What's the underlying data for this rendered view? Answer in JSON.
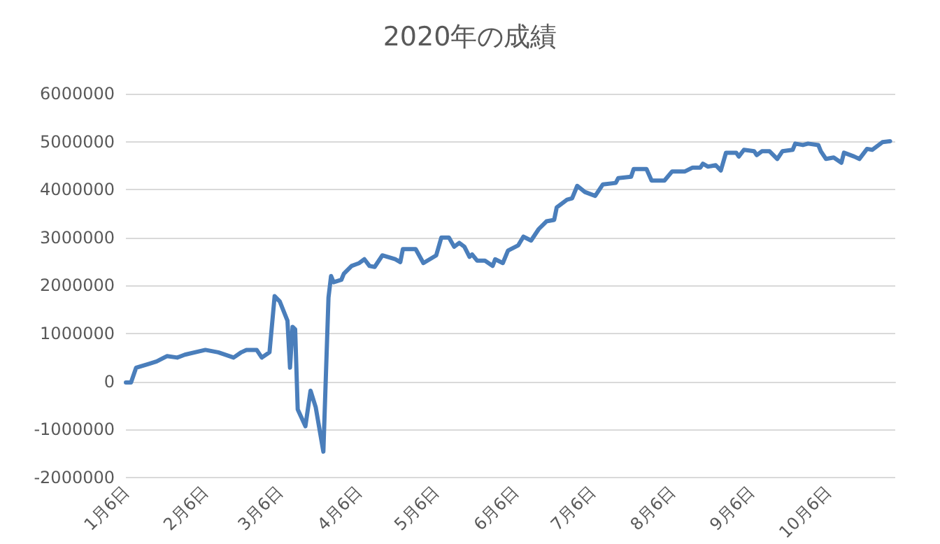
{
  "chart_data": {
    "type": "line",
    "title": "2020年の成績",
    "x": [
      "--01-06",
      "--01-08",
      "--01-10",
      "--01-15",
      "--01-18",
      "--01-22",
      "--01-26",
      "--01-29",
      "--02-06",
      "--02-11",
      "--02-17",
      "--02-20",
      "--02-22",
      "--02-26",
      "--02-28",
      "--03-02",
      "--03-04",
      "--03-06",
      "--03-09",
      "--03-10",
      "--03-11",
      "--03-12",
      "--03-13",
      "--03-16",
      "--03-18",
      "--03-20",
      "--03-23",
      "--03-25",
      "--03-26",
      "--03-27",
      "--03-30",
      "--03-31",
      "--04-03",
      "--04-06",
      "--04-08",
      "--04-10",
      "--04-12",
      "--04-15",
      "--04-20",
      "--04-22",
      "--04-23",
      "--04-28",
      "--05-01",
      "--05-06",
      "--05-08",
      "--05-11",
      "--05-13",
      "--05-15",
      "--05-17",
      "--05-19",
      "--05-20",
      "--05-22",
      "--05-25",
      "--05-28",
      "--05-29",
      "--06-01",
      "--06-03",
      "--06-07",
      "--06-09",
      "--06-12",
      "--06-15",
      "--06-18",
      "--06-21",
      "--06-22",
      "--06-26",
      "--06-28",
      "--06-30",
      "--07-03",
      "--07-07",
      "--07-10",
      "--07-15",
      "--07-16",
      "--07-21",
      "--07-22",
      "--07-27",
      "--07-29",
      "--08-03",
      "--08-06",
      "--08-11",
      "--08-14",
      "--08-17",
      "--08-18",
      "--08-20",
      "--08-23",
      "--08-25",
      "--08-27",
      "--08-31",
      "--09-01",
      "--09-03",
      "--09-07",
      "--09-08",
      "--09-10",
      "--09-13",
      "--09-16",
      "--09-18",
      "--09-22",
      "--09-23",
      "--09-26",
      "--09-28",
      "--10-02",
      "--10-03",
      "--10-05",
      "--10-08",
      "--10-11",
      "--10-12",
      "--10-16",
      "--10-18",
      "--10-21",
      "--10-23",
      "--10-27",
      "--10-30"
    ],
    "series": [
      {
        "color": "#4a7ebb",
        "values": [
          -20000,
          -20000,
          290000,
          370000,
          420000,
          530000,
          500000,
          560000,
          660000,
          610000,
          500000,
          610000,
          660000,
          660000,
          500000,
          610000,
          1780000,
          1670000,
          1270000,
          290000,
          1140000,
          1090000,
          -580000,
          -930000,
          -190000,
          -530000,
          -1460000,
          1750000,
          2200000,
          2070000,
          2120000,
          2250000,
          2410000,
          2470000,
          2550000,
          2410000,
          2390000,
          2630000,
          2550000,
          2490000,
          2760000,
          2760000,
          2470000,
          2630000,
          3000000,
          3000000,
          2810000,
          2890000,
          2810000,
          2600000,
          2650000,
          2520000,
          2520000,
          2410000,
          2550000,
          2470000,
          2730000,
          2840000,
          3020000,
          2940000,
          3180000,
          3340000,
          3370000,
          3630000,
          3790000,
          3820000,
          4080000,
          3950000,
          3870000,
          4110000,
          4140000,
          4240000,
          4270000,
          4430000,
          4430000,
          4190000,
          4190000,
          4380000,
          4380000,
          4460000,
          4460000,
          4540000,
          4480000,
          4510000,
          4400000,
          4770000,
          4770000,
          4690000,
          4830000,
          4800000,
          4720000,
          4800000,
          4800000,
          4640000,
          4800000,
          4830000,
          4960000,
          4930000,
          4960000,
          4930000,
          4800000,
          4640000,
          4670000,
          4560000,
          4770000,
          4690000,
          4640000,
          4850000,
          4830000,
          4990000,
          5010000
        ]
      }
    ],
    "xlim": [
      "--01-06",
      "--11-01"
    ],
    "xticks": [
      {
        "value": "--01-06",
        "label": "1月6日"
      },
      {
        "value": "--02-06",
        "label": "2月6日"
      },
      {
        "value": "--03-06",
        "label": "3月6日"
      },
      {
        "value": "--04-06",
        "label": "4月6日"
      },
      {
        "value": "--05-06",
        "label": "5月6日"
      },
      {
        "value": "--06-06",
        "label": "6月6日"
      },
      {
        "value": "--07-06",
        "label": "7月6日"
      },
      {
        "value": "--08-06",
        "label": "8月6日"
      },
      {
        "value": "--09-06",
        "label": "9月6日"
      },
      {
        "value": "--10-06",
        "label": "10月6日"
      }
    ],
    "ylim": [
      -2000000,
      6000000
    ],
    "yticks": [
      -2000000,
      -1000000,
      0,
      1000000,
      2000000,
      3000000,
      4000000,
      5000000,
      6000000
    ],
    "grid": "y",
    "line_style": "solid",
    "marker": "none"
  }
}
